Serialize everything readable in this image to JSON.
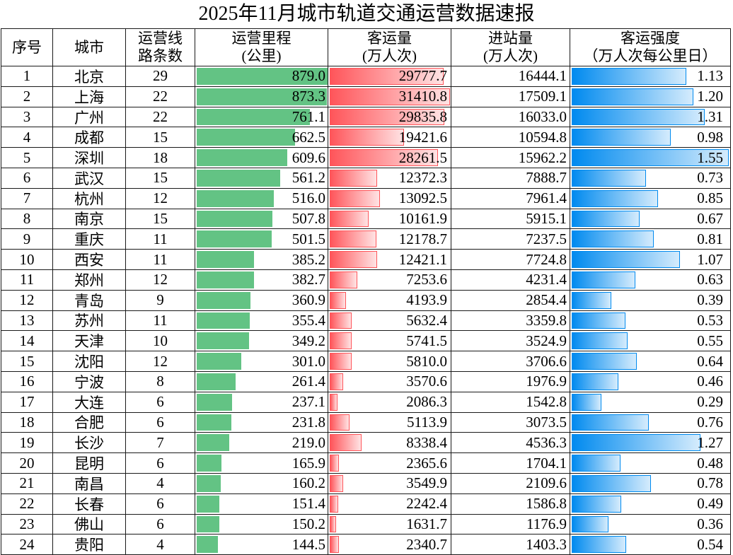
{
  "chart_data": {
    "type": "table",
    "title": "2025年11月城市轨道交通运营数据速报",
    "headers": {
      "index": [
        "序号"
      ],
      "city": [
        "城市"
      ],
      "lines": [
        "运营线",
        "路条数"
      ],
      "mileage": [
        "运营里程",
        "(公里)"
      ],
      "passengers": [
        "客运量",
        "(万人次)"
      ],
      "entries": [
        "进站量",
        "(万人次)"
      ],
      "intensity": [
        "客运强度",
        "（万人次每公里日）"
      ]
    },
    "rows": [
      {
        "index": "1",
        "city": "北京",
        "lines": "29",
        "mileage": "879.0",
        "passengers": "29777.7",
        "entries": "16444.1",
        "intensity": "1.13"
      },
      {
        "index": "2",
        "city": "上海",
        "lines": "22",
        "mileage": "873.3",
        "passengers": "31410.8",
        "entries": "17509.1",
        "intensity": "1.20"
      },
      {
        "index": "3",
        "city": "广州",
        "lines": "22",
        "mileage": "761.1",
        "passengers": "29835.8",
        "entries": "16033.0",
        "intensity": "1.31"
      },
      {
        "index": "4",
        "city": "成都",
        "lines": "15",
        "mileage": "662.5",
        "passengers": "19421.6",
        "entries": "10594.8",
        "intensity": "0.98"
      },
      {
        "index": "5",
        "city": "深圳",
        "lines": "18",
        "mileage": "609.6",
        "passengers": "28261.5",
        "entries": "15962.2",
        "intensity": "1.55"
      },
      {
        "index": "6",
        "city": "武汉",
        "lines": "15",
        "mileage": "561.2",
        "passengers": "12372.3",
        "entries": "7888.7",
        "intensity": "0.73"
      },
      {
        "index": "7",
        "city": "杭州",
        "lines": "12",
        "mileage": "516.0",
        "passengers": "13092.5",
        "entries": "7961.4",
        "intensity": "0.85"
      },
      {
        "index": "8",
        "city": "南京",
        "lines": "15",
        "mileage": "507.8",
        "passengers": "10161.9",
        "entries": "5915.1",
        "intensity": "0.67"
      },
      {
        "index": "9",
        "city": "重庆",
        "lines": "11",
        "mileage": "501.5",
        "passengers": "12178.7",
        "entries": "7237.5",
        "intensity": "0.81"
      },
      {
        "index": "10",
        "city": "西安",
        "lines": "11",
        "mileage": "385.2",
        "passengers": "12421.1",
        "entries": "7724.8",
        "intensity": "1.07"
      },
      {
        "index": "11",
        "city": "郑州",
        "lines": "12",
        "mileage": "382.7",
        "passengers": "7253.6",
        "entries": "4231.4",
        "intensity": "0.63"
      },
      {
        "index": "12",
        "city": "青岛",
        "lines": "9",
        "mileage": "360.9",
        "passengers": "4193.9",
        "entries": "2854.4",
        "intensity": "0.39"
      },
      {
        "index": "13",
        "city": "苏州",
        "lines": "11",
        "mileage": "355.4",
        "passengers": "5632.4",
        "entries": "3359.8",
        "intensity": "0.53"
      },
      {
        "index": "14",
        "city": "天津",
        "lines": "10",
        "mileage": "349.2",
        "passengers": "5741.5",
        "entries": "3524.9",
        "intensity": "0.55"
      },
      {
        "index": "15",
        "city": "沈阳",
        "lines": "12",
        "mileage": "301.0",
        "passengers": "5810.0",
        "entries": "3706.6",
        "intensity": "0.64"
      },
      {
        "index": "16",
        "city": "宁波",
        "lines": "8",
        "mileage": "261.4",
        "passengers": "3570.6",
        "entries": "1976.9",
        "intensity": "0.46"
      },
      {
        "index": "17",
        "city": "大连",
        "lines": "6",
        "mileage": "237.1",
        "passengers": "2086.3",
        "entries": "1542.8",
        "intensity": "0.29"
      },
      {
        "index": "18",
        "city": "合肥",
        "lines": "6",
        "mileage": "231.8",
        "passengers": "5113.9",
        "entries": "3073.5",
        "intensity": "0.76"
      },
      {
        "index": "19",
        "city": "长沙",
        "lines": "7",
        "mileage": "219.0",
        "passengers": "8338.4",
        "entries": "4536.3",
        "intensity": "1.27"
      },
      {
        "index": "20",
        "city": "昆明",
        "lines": "6",
        "mileage": "165.9",
        "passengers": "2365.6",
        "entries": "1704.1",
        "intensity": "0.48"
      },
      {
        "index": "21",
        "city": "南昌",
        "lines": "4",
        "mileage": "160.2",
        "passengers": "3549.9",
        "entries": "2109.6",
        "intensity": "0.78"
      },
      {
        "index": "22",
        "city": "长春",
        "lines": "6",
        "mileage": "151.4",
        "passengers": "2242.4",
        "entries": "1586.8",
        "intensity": "0.49"
      },
      {
        "index": "23",
        "city": "佛山",
        "lines": "6",
        "mileage": "150.2",
        "passengers": "1631.7",
        "entries": "1176.9",
        "intensity": "0.36"
      },
      {
        "index": "24",
        "city": "贵阳",
        "lines": "4",
        "mileage": "144.5",
        "passengers": "2340.7",
        "entries": "1403.3",
        "intensity": "0.54"
      }
    ],
    "data_bars": {
      "mileage": {
        "color": "#63C384",
        "gradient": false
      },
      "passengers": {
        "color": "#FF555A",
        "gradient": true
      },
      "intensity": {
        "color": "#008AEF",
        "gradient": true
      }
    }
  },
  "colors": {
    "grid_line": "#1a1a1a",
    "text": "#000000",
    "background": "#ffffff"
  }
}
